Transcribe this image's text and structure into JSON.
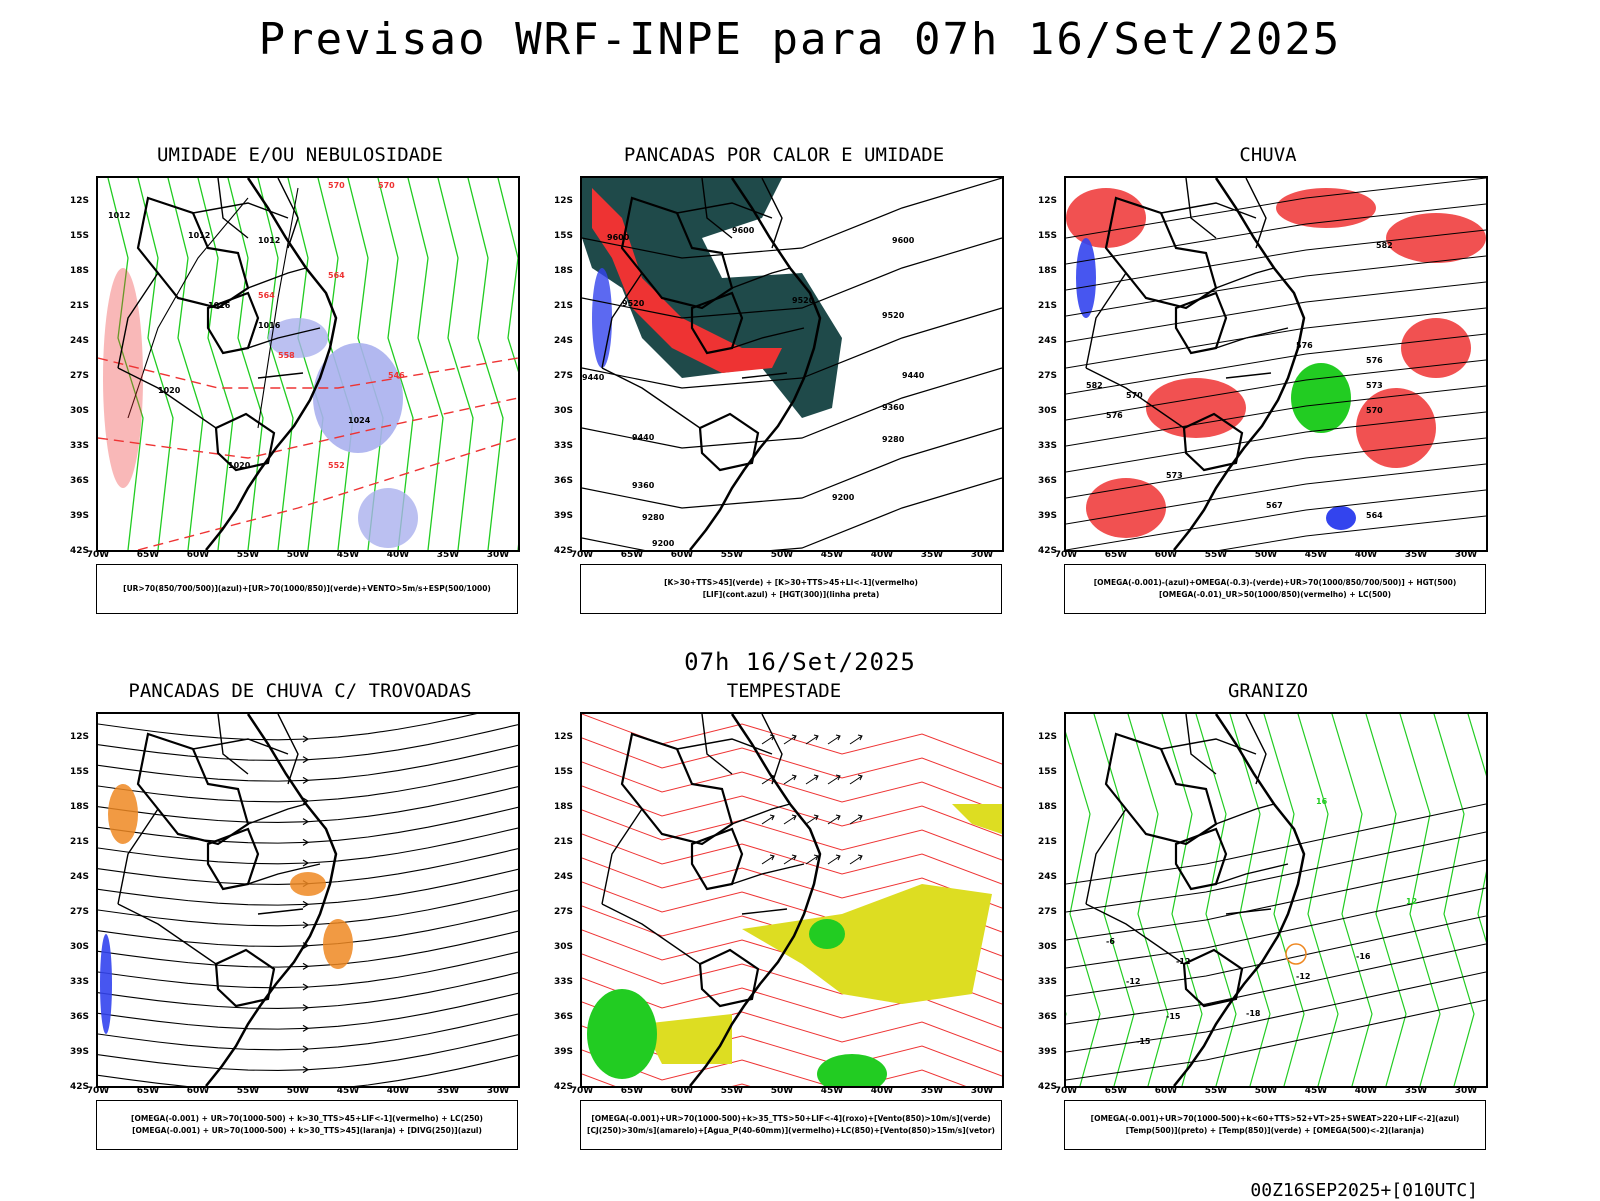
{
  "header": {
    "title": "Previsao WRF-INPE  para 07h 16/Set/2025"
  },
  "middle": {
    "title": "07h 16/Set/2025"
  },
  "footer": {
    "stamp": "00Z16SEP2025+[010UTC]"
  },
  "axes": {
    "lat_labels": [
      "12S",
      "15S",
      "18S",
      "21S",
      "24S",
      "27S",
      "30S",
      "33S",
      "36S",
      "39S",
      "42S"
    ],
    "lon_labels": [
      "70W",
      "65W",
      "60W",
      "55W",
      "50W",
      "45W",
      "40W",
      "35W",
      "30W"
    ]
  },
  "colors": {
    "blue": "#3344ee",
    "green": "#22cc22",
    "red": "#ee3333",
    "darkteal": "#1f4a4a",
    "yellow": "#dddd22",
    "orange": "#ee8822",
    "lavender": "#aab0ee"
  },
  "panels": [
    {
      "id": "umidade",
      "title": "UMIDADE E/OU NEBULOSIDADE",
      "legend": [
        "[UR>70(850/700/500)](azul)+[UR>70(1000/850)](verde)+VENTO>5m/s+ESP(500/1000)"
      ],
      "contour_labels": [
        "1012",
        "1012",
        "1012",
        "1016",
        "1016",
        "1020",
        "1020",
        "1024",
        "570",
        "570",
        "564",
        "564",
        "558",
        "552",
        "546"
      ]
    },
    {
      "id": "pancadas-calor",
      "title": "PANCADAS POR CALOR E UMIDADE",
      "legend": [
        "[K>30+TTS>45](verde) + [K>30+TTS>45+LI<-1](vermelho)",
        "[LIF](cont.azul) + [HGT(300)](linha preta)"
      ],
      "contour_labels": [
        "9600",
        "9600",
        "9600",
        "9520",
        "9520",
        "9520",
        "9440",
        "9440",
        "9440",
        "9360",
        "9360",
        "9280",
        "9280",
        "9200",
        "9200"
      ]
    },
    {
      "id": "chuva",
      "title": "CHUVA",
      "legend": [
        "[OMEGA(-0.001)-(azul)+OMEGA(-0.3)-(verde)+UR>70(1000/850/700/500)] + HGT(500)",
        "[OMEGA(-0.01)_UR>50(1000/850)(vermelho) + LC(500)"
      ],
      "contour_labels": [
        "582",
        "582",
        "576",
        "576",
        "576",
        "573",
        "573",
        "570",
        "570",
        "567",
        "564"
      ]
    },
    {
      "id": "pancadas-trovoadas",
      "title": "PANCADAS DE CHUVA C/ TROVOADAS",
      "legend": [
        "[OMEGA(-0.001) + UR>70(1000-500) + k>30_TTS>45+LIF<-1](vermelho) + LC(250)",
        "[OMEGA(-0.001) + UR>70(1000-500) + k>30_TTS>45](laranja) + [DIVG(250)](azul)"
      ],
      "contour_labels": []
    },
    {
      "id": "tempestade",
      "title": "TEMPESTADE",
      "legend": [
        "[OMEGA(-0.001)+UR>70(1000-500)+k>35_TTS>50+LIF<-4](roxo)+[Vento(850)>10m/s](verde)",
        "[CJ(250)>30m/s](amarelo)+[Agua_P(40-60mm)](vermelho)+LC(850)+[Vento(850)>15m/s](vetor)"
      ],
      "contour_labels": []
    },
    {
      "id": "granizo",
      "title": "GRANIZO",
      "legend": [
        "[OMEGA(-0.001)+UR>70(1000-500)+k<60+TTS>52+VT>25+SWEAT>220+LIF<-2](azul)",
        "[Temp(500)](preto) + [Temp(850)](verde) + [OMEGA(500)<-2](laranja)"
      ],
      "contour_labels": [
        "-6",
        "-12",
        "-12",
        "-12",
        "-15",
        "-15",
        "-16",
        "-18",
        "12",
        "16"
      ]
    }
  ]
}
